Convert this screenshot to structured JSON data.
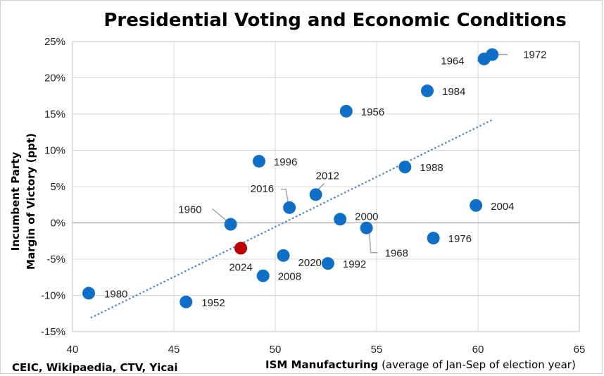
{
  "chart_data": {
    "type": "scatter",
    "title": "Presidential Voting and Economic Conditions",
    "xlabel_bold": "ISM Manufacturing",
    "xlabel_rest": " (average of Jan-Sep of election year)",
    "ylabel_line1": "Incumbent Party",
    "ylabel_line2": "Margin of Victory (ppt)",
    "source": "CEIC, Wikipaedia, CTV, Yicai",
    "xlim": [
      40,
      65
    ],
    "ylim": [
      -15,
      25
    ],
    "x_ticks": [
      40,
      45,
      50,
      55,
      60,
      65
    ],
    "y_ticks": [
      -15,
      -10,
      -5,
      0,
      5,
      10,
      15,
      20,
      25
    ],
    "x_tick_labels": [
      "40",
      "45",
      "50",
      "55",
      "60",
      "65"
    ],
    "y_tick_labels": [
      "-15%",
      "-10%",
      "-5%",
      "0%",
      "5%",
      "10%",
      "15%",
      "20%",
      "25%"
    ],
    "colors": {
      "point": "#0f6fc6",
      "highlight": "#c00000",
      "trend": "#4a86c5",
      "grid": "#d9d9d9"
    },
    "trendline": {
      "style": "dotted",
      "from": [
        40.9,
        -13.1
      ],
      "to": [
        60.7,
        14.2
      ]
    },
    "points": [
      {
        "label": "1952",
        "x": 45.6,
        "y": -10.9
      },
      {
        "label": "1956",
        "x": 53.5,
        "y": 15.4
      },
      {
        "label": "1960",
        "x": 47.8,
        "y": -0.2
      },
      {
        "label": "1964",
        "x": 60.3,
        "y": 22.6
      },
      {
        "label": "1968",
        "x": 54.5,
        "y": -0.7
      },
      {
        "label": "1972",
        "x": 60.7,
        "y": 23.2
      },
      {
        "label": "1976",
        "x": 57.8,
        "y": -2.1
      },
      {
        "label": "1980",
        "x": 40.8,
        "y": -9.7
      },
      {
        "label": "1984",
        "x": 57.5,
        "y": 18.2
      },
      {
        "label": "1988",
        "x": 56.4,
        "y": 7.7
      },
      {
        "label": "1992",
        "x": 52.6,
        "y": -5.6
      },
      {
        "label": "1996",
        "x": 49.2,
        "y": 8.5
      },
      {
        "label": "2000",
        "x": 53.2,
        "y": 0.5
      },
      {
        "label": "2004",
        "x": 59.9,
        "y": 2.4
      },
      {
        "label": "2008",
        "x": 49.4,
        "y": -7.3
      },
      {
        "label": "2012",
        "x": 52.0,
        "y": 3.9
      },
      {
        "label": "2016",
        "x": 50.7,
        "y": 2.1
      },
      {
        "label": "2020",
        "x": 50.4,
        "y": -4.5
      },
      {
        "label": "2024",
        "x": 48.3,
        "y": -3.5,
        "highlight": true
      }
    ]
  }
}
